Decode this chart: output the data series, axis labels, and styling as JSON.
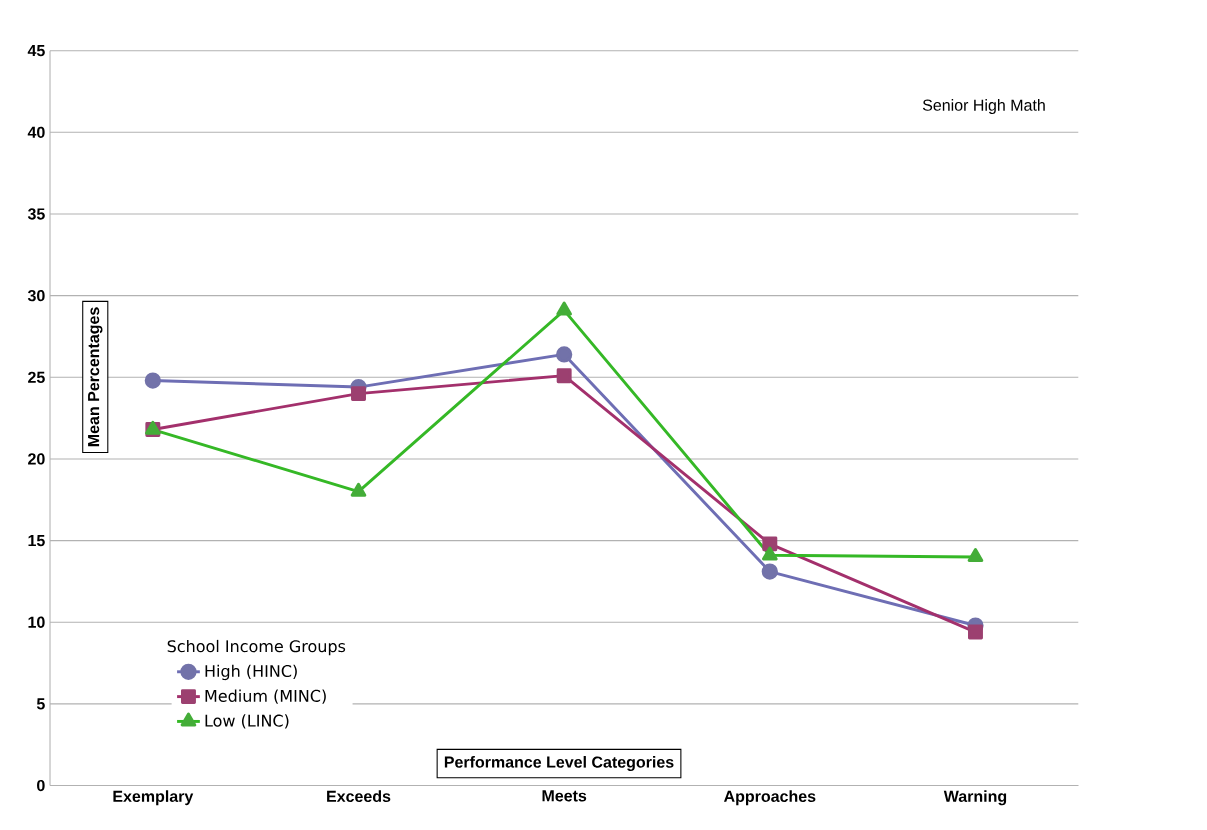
{
  "chart_data": {
    "type": "line",
    "title": "Senior High Math",
    "xlabel": "Performance Level Categories",
    "ylabel": "Mean Percentages",
    "legend_title": "School Income Groups",
    "categories": [
      "Exemplary",
      "Exceeds",
      "Meets",
      "Approaches",
      "Warning"
    ],
    "series": [
      {
        "name": "High (HINC)",
        "color": "#6e6eb4",
        "marker": "circle",
        "values": [
          24.8,
          24.4,
          26.4,
          13.1,
          9.8
        ]
      },
      {
        "name": "Medium (MINC)",
        "color": "#a3306c",
        "marker": "square",
        "values": [
          21.8,
          24.0,
          25.1,
          14.8,
          9.4
        ]
      },
      {
        "name": "Low (LINC)",
        "color": "#35b826",
        "marker": "triangle",
        "values": [
          21.8,
          18.0,
          29.1,
          14.1,
          14.0
        ]
      }
    ],
    "ylim": [
      0,
      45
    ],
    "yticks": [
      0,
      5,
      10,
      15,
      20,
      25,
      30,
      35,
      40,
      45
    ],
    "grid": "y",
    "legend": "bottom left"
  }
}
